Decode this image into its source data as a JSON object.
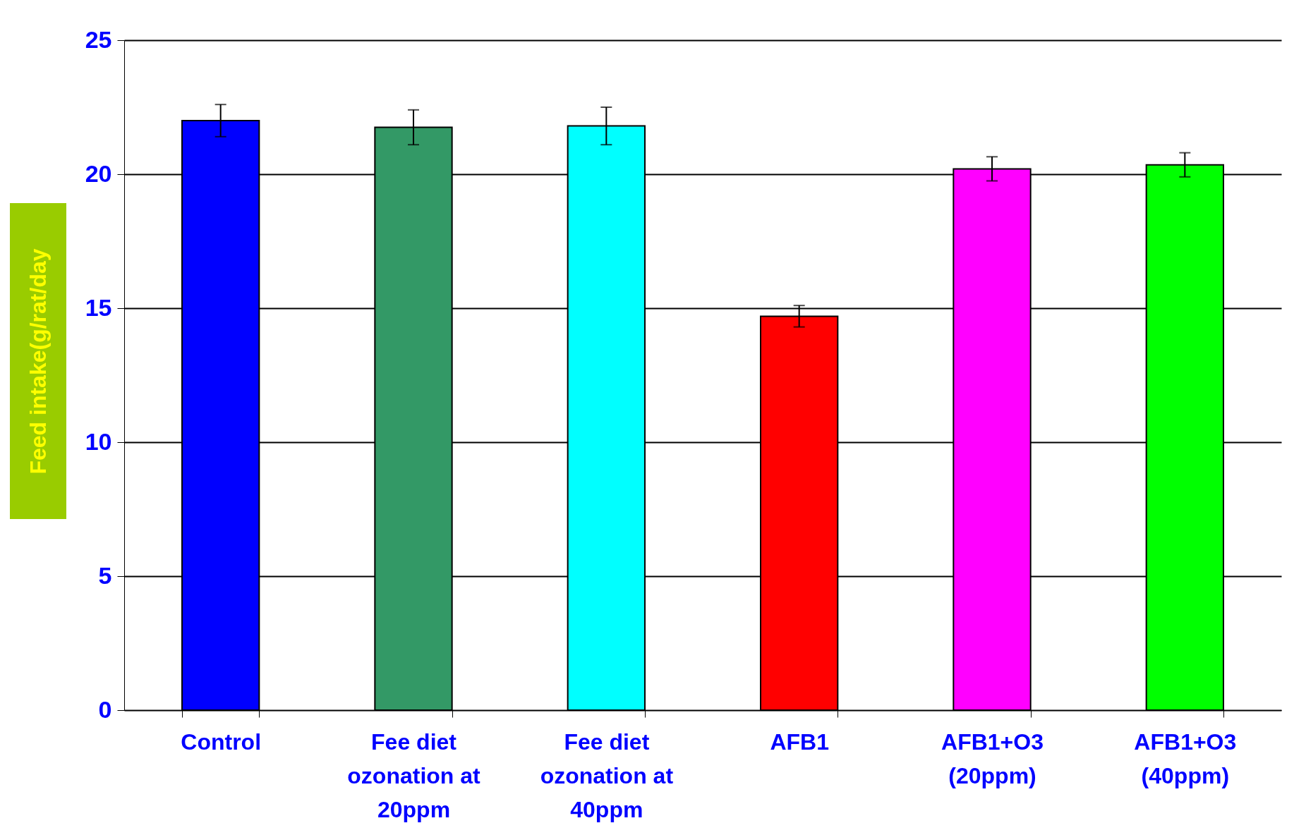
{
  "chart_data": {
    "type": "bar",
    "ylabel": "Feed intake(g/rat/day",
    "categories": [
      "Control",
      "Fee diet ozonation at 20ppm",
      "Fee diet ozonation at 40ppm",
      "AFB1",
      "AFB1+O3 (20ppm)",
      "AFB1+O3 (40ppm)"
    ],
    "values": [
      22.0,
      21.75,
      21.8,
      14.7,
      20.2,
      20.35
    ],
    "errors": [
      0.6,
      0.65,
      0.7,
      0.4,
      0.45,
      0.45
    ],
    "colors": [
      "#0000ff",
      "#339966",
      "#00ffff",
      "#ff0000",
      "#ff00ff",
      "#00ff00"
    ],
    "ylim": [
      0,
      25
    ],
    "yticks": [
      0,
      5,
      10,
      15,
      20,
      25
    ],
    "grid": "y",
    "legend": false
  }
}
